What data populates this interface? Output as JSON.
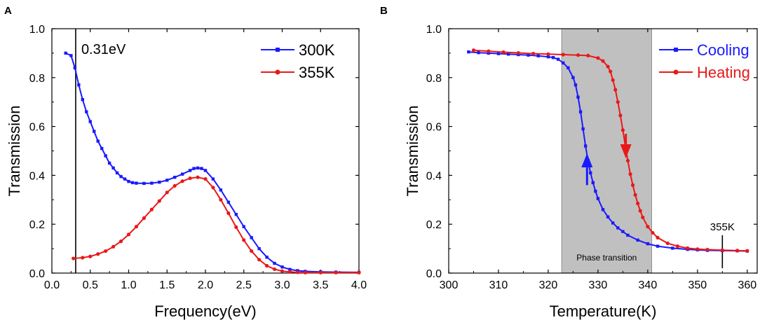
{
  "chart_data": [
    {
      "panel": "A",
      "type": "line",
      "title": "",
      "xlabel": "Frequency(eV)",
      "ylabel": "Transmission",
      "xlim": [
        0.0,
        4.0
      ],
      "ylim": [
        0.0,
        1.0
      ],
      "xticks": [
        "0.0",
        "0.5",
        "1.0",
        "1.5",
        "2.0",
        "2.5",
        "3.0",
        "3.5",
        "4.0"
      ],
      "yticks": [
        "0.0",
        "0.2",
        "0.4",
        "0.6",
        "0.8",
        "1.0"
      ],
      "legend": "top-right",
      "annotations": [
        {
          "text": "0.31eV",
          "x": 0.31,
          "kind": "vertical-line"
        }
      ],
      "series": [
        {
          "name": "300K",
          "color": "#1a1aff",
          "marker": "square",
          "x": [
            0.18,
            0.25,
            0.3,
            0.35,
            0.4,
            0.45,
            0.5,
            0.55,
            0.6,
            0.65,
            0.7,
            0.75,
            0.8,
            0.85,
            0.9,
            0.95,
            1.0,
            1.05,
            1.1,
            1.2,
            1.3,
            1.4,
            1.5,
            1.6,
            1.7,
            1.8,
            1.85,
            1.9,
            1.95,
            2.0,
            2.1,
            2.2,
            2.3,
            2.4,
            2.5,
            2.6,
            2.7,
            2.8,
            2.9,
            3.0,
            3.1,
            3.2,
            3.3,
            3.5,
            3.7,
            4.0
          ],
          "values": [
            0.9,
            0.89,
            0.84,
            0.77,
            0.71,
            0.66,
            0.62,
            0.58,
            0.54,
            0.51,
            0.48,
            0.45,
            0.43,
            0.41,
            0.395,
            0.385,
            0.375,
            0.37,
            0.368,
            0.367,
            0.368,
            0.372,
            0.38,
            0.392,
            0.405,
            0.42,
            0.428,
            0.43,
            0.428,
            0.42,
            0.385,
            0.34,
            0.29,
            0.24,
            0.19,
            0.145,
            0.1,
            0.065,
            0.04,
            0.025,
            0.015,
            0.01,
            0.007,
            0.005,
            0.004,
            0.003
          ]
        },
        {
          "name": "355K",
          "color": "#e81919",
          "marker": "circle",
          "x": [
            0.28,
            0.4,
            0.5,
            0.6,
            0.7,
            0.8,
            0.9,
            1.0,
            1.1,
            1.2,
            1.3,
            1.4,
            1.5,
            1.6,
            1.7,
            1.8,
            1.9,
            2.0,
            2.1,
            2.2,
            2.3,
            2.4,
            2.5,
            2.6,
            2.7,
            2.8,
            2.9,
            3.0,
            3.1,
            3.2,
            3.3,
            3.5,
            3.7,
            4.0
          ],
          "values": [
            0.06,
            0.063,
            0.068,
            0.078,
            0.09,
            0.108,
            0.13,
            0.158,
            0.19,
            0.225,
            0.26,
            0.295,
            0.33,
            0.357,
            0.376,
            0.388,
            0.392,
            0.385,
            0.35,
            0.3,
            0.245,
            0.188,
            0.135,
            0.09,
            0.055,
            0.03,
            0.016,
            0.008,
            0.005,
            0.003,
            0.002,
            0.002,
            0.002,
            0.002
          ]
        }
      ]
    },
    {
      "panel": "B",
      "type": "line",
      "title": "",
      "xlabel": "Temperature(K)",
      "ylabel": "Transmission",
      "xlim": [
        300,
        362
      ],
      "ylim": [
        0.0,
        1.0
      ],
      "xticks": [
        "300",
        "310",
        "320",
        "330",
        "340",
        "350",
        "360"
      ],
      "yticks": [
        "0.0",
        "0.2",
        "0.4",
        "0.6",
        "0.8",
        "1.0"
      ],
      "legend": "top-right",
      "shaded_region": {
        "label": "Phase transition",
        "x_from": 322.7,
        "x_to": 340.8
      },
      "annotations": [
        {
          "text": "355K",
          "x": 355,
          "kind": "vertical-marker"
        }
      ],
      "arrows": [
        {
          "series": "Cooling",
          "direction": "up",
          "x": 327.8,
          "y_from": 0.36,
          "y_to": 0.49
        },
        {
          "series": "Heating",
          "direction": "down",
          "x": 335.6,
          "y_from": 0.57,
          "y_to": 0.47
        }
      ],
      "series": [
        {
          "name": "Cooling",
          "color": "#1a1aff",
          "marker": "square",
          "x": [
            304,
            306,
            308,
            310,
            312,
            314,
            316,
            318,
            320,
            321,
            322,
            323,
            324,
            325,
            325.5,
            326,
            326.5,
            327,
            327.5,
            328,
            328.5,
            329,
            329.5,
            330,
            331,
            332,
            333,
            334,
            335,
            336,
            338,
            340,
            342,
            345,
            348,
            350,
            352,
            355,
            358,
            360
          ],
          "values": [
            0.905,
            0.902,
            0.9,
            0.898,
            0.896,
            0.894,
            0.892,
            0.889,
            0.885,
            0.882,
            0.875,
            0.86,
            0.84,
            0.8,
            0.77,
            0.72,
            0.66,
            0.59,
            0.52,
            0.46,
            0.41,
            0.37,
            0.335,
            0.305,
            0.26,
            0.23,
            0.205,
            0.185,
            0.17,
            0.155,
            0.135,
            0.12,
            0.11,
            0.102,
            0.097,
            0.095,
            0.093,
            0.092,
            0.091,
            0.09
          ]
        },
        {
          "name": "Heating",
          "color": "#e81919",
          "marker": "circle",
          "x": [
            305,
            308,
            311,
            314,
            317,
            320,
            323,
            326,
            328,
            330,
            331,
            332,
            332.5,
            333,
            333.5,
            334,
            334.5,
            335,
            335.5,
            336,
            336.5,
            337,
            337.5,
            338,
            338.5,
            339,
            340,
            341,
            342,
            344,
            346,
            348,
            350,
            352,
            355,
            358,
            360
          ],
          "values": [
            0.912,
            0.908,
            0.904,
            0.901,
            0.898,
            0.896,
            0.894,
            0.892,
            0.89,
            0.88,
            0.868,
            0.845,
            0.825,
            0.79,
            0.75,
            0.7,
            0.645,
            0.585,
            0.52,
            0.46,
            0.405,
            0.36,
            0.32,
            0.285,
            0.255,
            0.228,
            0.19,
            0.165,
            0.145,
            0.122,
            0.11,
            0.102,
            0.098,
            0.096,
            0.094,
            0.092,
            0.091
          ]
        }
      ]
    }
  ]
}
